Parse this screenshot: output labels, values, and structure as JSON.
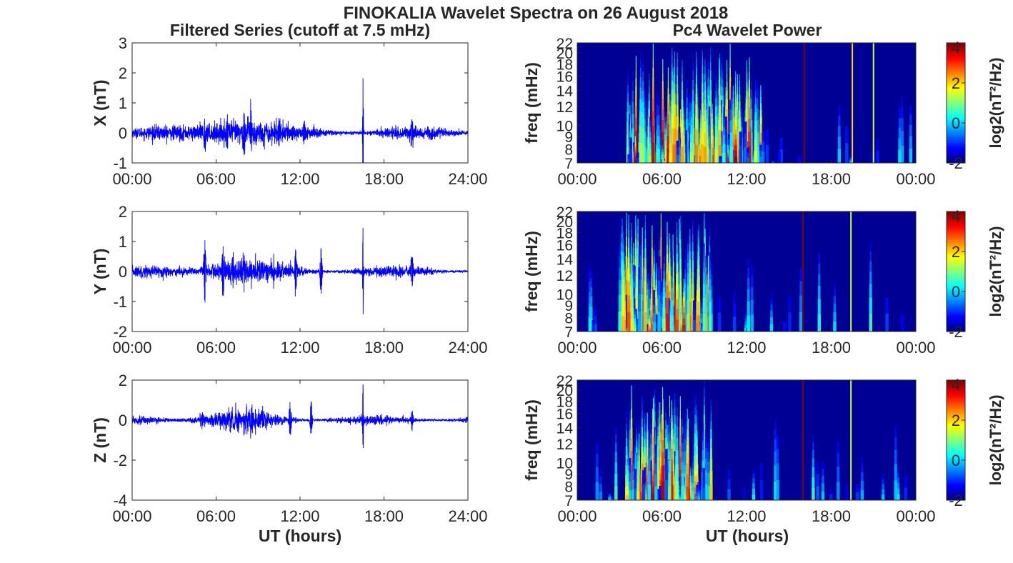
{
  "figure": {
    "title": "FINOKALIA Wavelet Spectra on 26 August 2018",
    "left_column_title": "Filtered Series (cutoff at 7.5 mHz)",
    "right_column_title": "Pc4 Wavelet Power",
    "xlabel": "UT (hours)"
  },
  "chart_data": [
    {
      "type": "line",
      "component": "X",
      "ylabel": "X (nT)",
      "xlim": [
        0,
        24
      ],
      "ylim": [
        -1,
        3
      ],
      "x_ticks": [
        "00:00",
        "06:00",
        "12:00",
        "18:00",
        "24:00"
      ],
      "y_ticks": [
        "-1",
        "0",
        "1",
        "2",
        "3"
      ],
      "series": [
        {
          "color": "#0000ff",
          "baseline_amplitude": 0.12,
          "envelope_peaks": [
            {
              "t": 5.2,
              "amp": 0.55
            },
            {
              "t": 6.8,
              "amp": 0.45
            },
            {
              "t": 8.0,
              "amp": 0.65
            },
            {
              "t": 8.5,
              "amp": 0.8
            },
            {
              "t": 10.5,
              "amp": 0.35
            },
            {
              "t": 12.3,
              "amp": 0.4
            },
            {
              "t": 16.5,
              "amp": 2.4
            },
            {
              "t": 20.0,
              "amp": 0.55
            }
          ]
        }
      ]
    },
    {
      "type": "line",
      "component": "Y",
      "ylabel": "Y (nT)",
      "xlim": [
        0,
        24
      ],
      "ylim": [
        -2,
        2
      ],
      "x_ticks": [
        "00:00",
        "06:00",
        "12:00",
        "18:00",
        "24:00"
      ],
      "y_ticks": [
        "-2",
        "-1",
        "0",
        "1",
        "2"
      ],
      "series": [
        {
          "color": "#0000ff",
          "baseline_amplitude": 0.1,
          "envelope_peaks": [
            {
              "t": 5.2,
              "amp": 1.15
            },
            {
              "t": 6.5,
              "amp": 0.9
            },
            {
              "t": 7.2,
              "amp": 0.6
            },
            {
              "t": 8.0,
              "amp": 0.5
            },
            {
              "t": 11.7,
              "amp": 0.8
            },
            {
              "t": 13.5,
              "amp": 0.85
            },
            {
              "t": 16.5,
              "amp": 1.6
            },
            {
              "t": 20.0,
              "amp": 0.6
            }
          ]
        }
      ]
    },
    {
      "type": "line",
      "component": "Z",
      "ylabel": "Z (nT)",
      "xlim": [
        0,
        24
      ],
      "ylim": [
        -4,
        2
      ],
      "x_ticks": [
        "00:00",
        "06:00",
        "12:00",
        "18:00",
        "24:00"
      ],
      "y_ticks": [
        "-4",
        "-2",
        "0",
        "2"
      ],
      "series": [
        {
          "color": "#0000ff",
          "baseline_amplitude": 0.12,
          "envelope_peaks": [
            {
              "t": 5.0,
              "amp": 0.4
            },
            {
              "t": 8.5,
              "amp": 0.6
            },
            {
              "t": 11.3,
              "amp": 1.0
            },
            {
              "t": 12.8,
              "amp": 1.0
            },
            {
              "t": 16.5,
              "amp": 2.0
            },
            {
              "t": 20.0,
              "amp": 0.5
            }
          ]
        }
      ]
    },
    {
      "type": "heatmap",
      "component": "X",
      "ylabel": "freq (mHz)",
      "colorbar_label": "log2(nT²/Hz)",
      "xlim": [
        0,
        24
      ],
      "ylim": [
        7,
        22
      ],
      "clim": [
        -2,
        4
      ],
      "colormap": "jet",
      "x_ticks": [
        "00:00",
        "06:00",
        "12:00",
        "18:00",
        "00:00"
      ],
      "y_ticks": [
        7,
        8,
        9,
        10,
        12,
        14,
        16,
        18,
        20,
        22
      ],
      "colorbar_ticks": [
        "-2",
        "0",
        "2",
        "4"
      ],
      "activity": {
        "active_window": [
          3.5,
          13.5
        ],
        "isolated_events": [
          {
            "t": 16.1,
            "power": 4
          },
          {
            "t": 19.5,
            "power": 2
          },
          {
            "t": 21.0,
            "power": 1.5
          }
        ]
      }
    },
    {
      "type": "heatmap",
      "component": "Y",
      "ylabel": "freq (mHz)",
      "colorbar_label": "log2(nT²/Hz)",
      "xlim": [
        0,
        24
      ],
      "ylim": [
        7,
        22
      ],
      "clim": [
        -2,
        4
      ],
      "colormap": "jet",
      "x_ticks": [
        "00:00",
        "06:00",
        "12:00",
        "18:00",
        "00:00"
      ],
      "y_ticks": [
        7,
        8,
        9,
        10,
        12,
        14,
        16,
        18,
        20,
        22
      ],
      "colorbar_ticks": [
        "-2",
        "0",
        "2",
        "4"
      ],
      "activity": {
        "active_window": [
          3.0,
          9.5
        ],
        "isolated_events": [
          {
            "t": 16.0,
            "power": 4
          },
          {
            "t": 19.4,
            "power": 1.5
          }
        ]
      }
    },
    {
      "type": "heatmap",
      "component": "Z",
      "ylabel": "freq (mHz)",
      "colorbar_label": "log2(nT²/Hz)",
      "xlim": [
        0,
        24
      ],
      "ylim": [
        7,
        22
      ],
      "clim": [
        -2,
        4
      ],
      "colormap": "jet",
      "x_ticks": [
        "00:00",
        "06:00",
        "12:00",
        "18:00",
        "00:00"
      ],
      "y_ticks": [
        7,
        8,
        9,
        10,
        12,
        14,
        16,
        18,
        20,
        22
      ],
      "colorbar_ticks": [
        "-2",
        "0",
        "2",
        "4"
      ],
      "activity": {
        "active_window": [
          3.5,
          9.5
        ],
        "isolated_events": [
          {
            "t": 16.0,
            "power": 4
          },
          {
            "t": 19.4,
            "power": 1.5
          }
        ]
      }
    }
  ]
}
